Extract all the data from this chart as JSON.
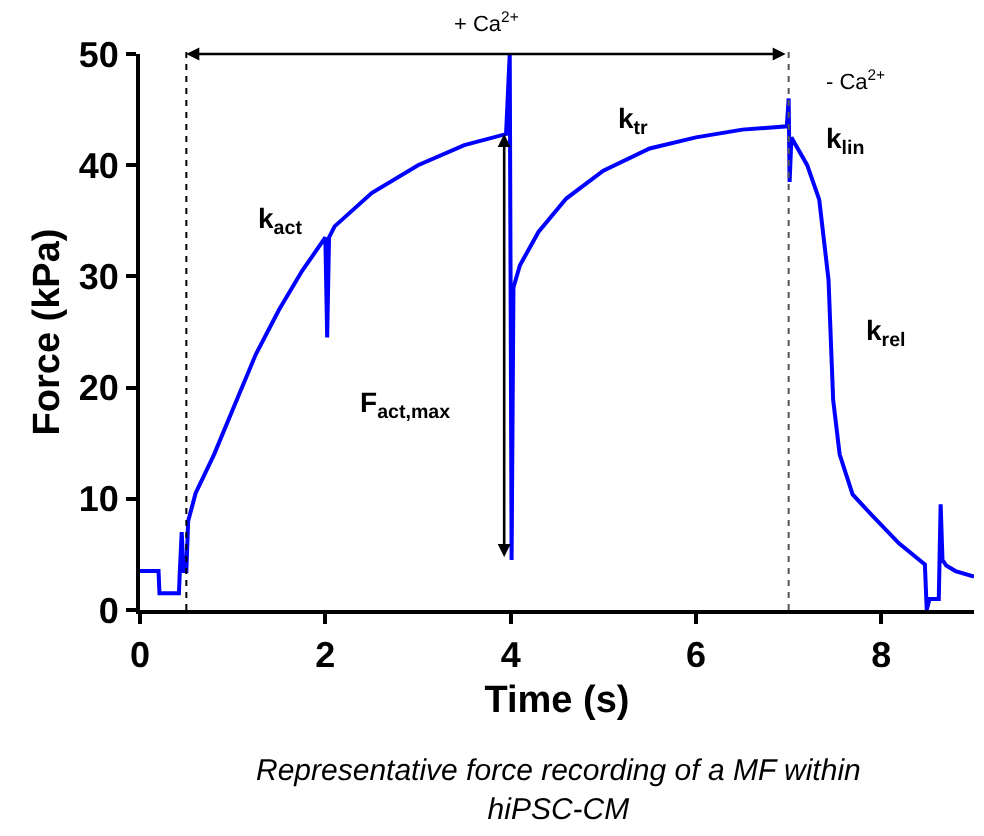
{
  "chart_data": {
    "type": "line",
    "xlabel": "Time (s)",
    "ylabel": "Force (kPa)",
    "x": [
      0,
      0.2,
      0.21,
      0.42,
      0.43,
      0.45,
      0.47,
      0.5,
      0.52,
      0.6,
      0.8,
      1.0,
      1.25,
      1.5,
      1.75,
      2.0,
      2.02,
      2.04,
      2.1,
      2.5,
      3.0,
      3.5,
      3.95,
      3.99,
      4.01,
      4.03,
      4.1,
      4.3,
      4.6,
      5.0,
      5.5,
      6.0,
      6.5,
      6.98,
      7.0,
      7.01,
      7.03,
      7.2,
      7.33,
      7.43,
      7.48,
      7.55,
      7.69,
      7.9,
      8.19,
      8.47,
      8.49,
      8.52,
      8.62,
      8.64,
      8.66,
      8.7,
      8.8,
      9.0
    ],
    "series": [
      {
        "color": "#0000ff",
        "values": [
          3.5,
          3.5,
          1.5,
          1.5,
          3.5,
          7,
          3.5,
          3.5,
          8,
          10.5,
          14,
          18,
          23,
          27,
          30.5,
          33.5,
          24.5,
          33.5,
          34.5,
          37.5,
          40,
          41.8,
          42.8,
          50,
          4.5,
          29,
          31,
          34,
          37,
          39.5,
          41.5,
          42.5,
          43.2,
          43.5,
          46,
          38.5,
          42.5,
          40,
          36.9,
          29.7,
          18.9,
          14,
          10.4,
          8.5,
          6,
          4.1,
          0,
          1,
          1,
          9.5,
          4.5,
          4,
          3.5,
          3
        ]
      }
    ],
    "xlim": [
      0,
      9
    ],
    "xticks": [
      0,
      2,
      4,
      6,
      8
    ],
    "ylim": [
      0,
      50
    ],
    "yticks": [
      0,
      10,
      20,
      30,
      40,
      50
    ],
    "marker": "none",
    "line_style": "solid",
    "ref_lines": [
      {
        "axis": "x",
        "value": 0.5,
        "color": "#000000",
        "line_style": "dotted"
      },
      {
        "axis": "x",
        "value": 7,
        "color": "#555555",
        "line_style": "dotted"
      }
    ],
    "annotations": [
      "+ Ca$^{2+}$",
      "- Ca$^{2+}$",
      "Representative force recording of a MF within hiPSC-CM",
      "k$_{act}$",
      "F$_{act,max}$",
      "k$_{tr}$",
      "k$_{lin}$",
      "k$_{rel}$"
    ]
  }
}
